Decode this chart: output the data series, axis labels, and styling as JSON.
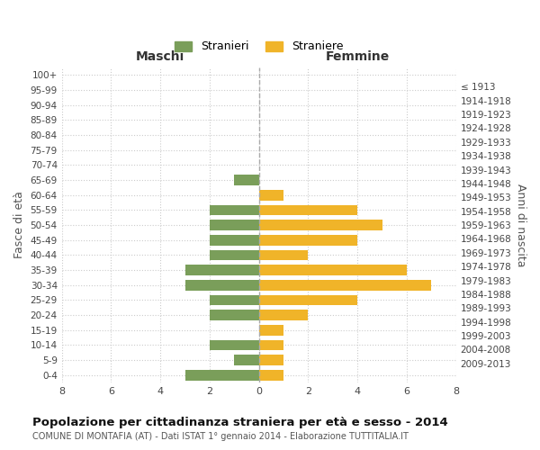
{
  "age_groups": [
    "100+",
    "95-99",
    "90-94",
    "85-89",
    "80-84",
    "75-79",
    "70-74",
    "65-69",
    "60-64",
    "55-59",
    "50-54",
    "45-49",
    "40-44",
    "35-39",
    "30-34",
    "25-29",
    "20-24",
    "15-19",
    "10-14",
    "5-9",
    "0-4"
  ],
  "birth_years": [
    "≤ 1913",
    "1914-1918",
    "1919-1923",
    "1924-1928",
    "1929-1933",
    "1934-1938",
    "1939-1943",
    "1944-1948",
    "1949-1953",
    "1954-1958",
    "1959-1963",
    "1964-1968",
    "1969-1973",
    "1974-1978",
    "1979-1983",
    "1984-1988",
    "1989-1993",
    "1994-1998",
    "1999-2003",
    "2004-2008",
    "2009-2013"
  ],
  "maschi": [
    0,
    0,
    0,
    0,
    0,
    0,
    0,
    1,
    0,
    2,
    2,
    2,
    2,
    3,
    3,
    2,
    2,
    0,
    2,
    1,
    3
  ],
  "femmine": [
    0,
    0,
    0,
    0,
    0,
    0,
    0,
    0,
    1,
    4,
    5,
    4,
    2,
    6,
    7,
    4,
    2,
    1,
    1,
    1,
    1
  ],
  "color_maschi": "#7a9e5a",
  "color_femmine": "#f0b429",
  "background_color": "#ffffff",
  "grid_color": "#cccccc",
  "title": "Popolazione per cittadinanza straniera per età e sesso - 2014",
  "subtitle": "COMUNE DI MONTAFIA (AT) - Dati ISTAT 1° gennaio 2014 - Elaborazione TUTTITALIA.IT",
  "ylabel_left": "Fasce di età",
  "ylabel_right": "Anni di nascita",
  "xlabel_left": "Maschi",
  "xlabel_right": "Femmine",
  "legend_stranieri": "Stranieri",
  "legend_straniere": "Straniere",
  "xlim": 8,
  "bar_height": 0.7
}
